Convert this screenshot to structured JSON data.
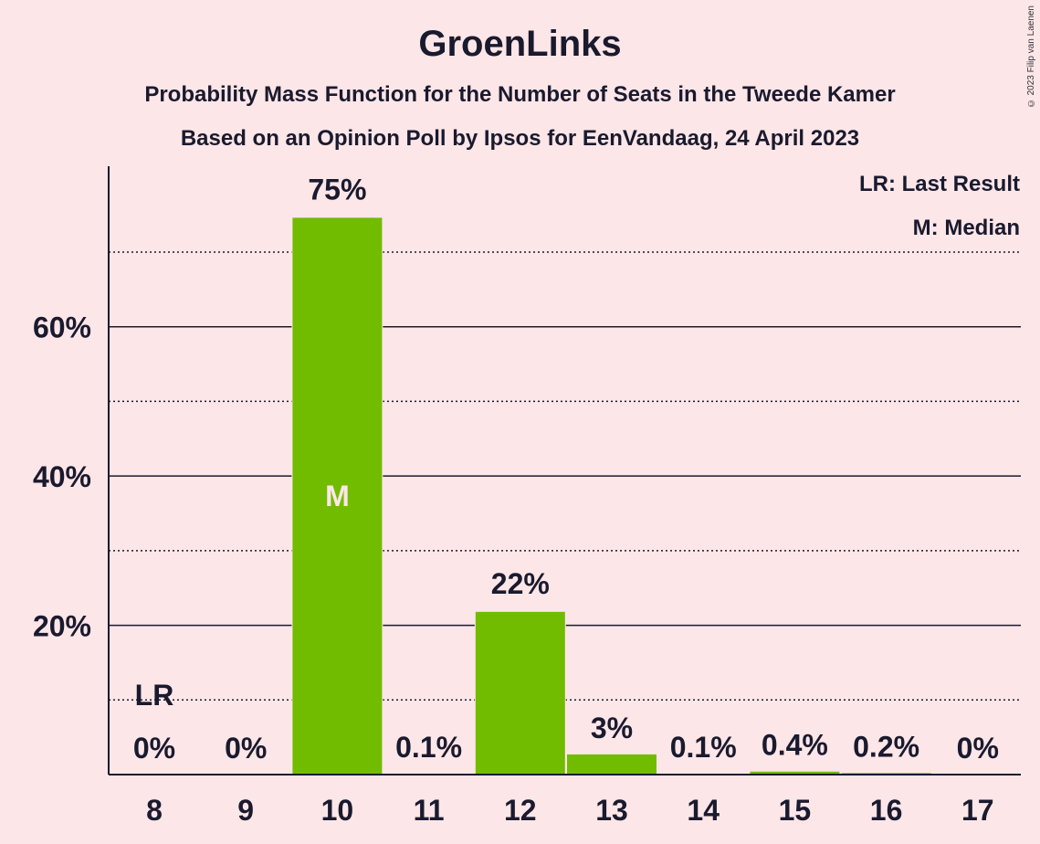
{
  "chart_data": {
    "type": "bar",
    "title": "GroenLinks",
    "subtitle": "Probability Mass Function for the Number of Seats in the Tweede Kamer",
    "subtitle2": "Based on an Opinion Poll by Ipsos for EenVandaag, 24 April 2023",
    "categories": [
      "8",
      "9",
      "10",
      "11",
      "12",
      "13",
      "14",
      "15",
      "16",
      "17"
    ],
    "values": [
      0,
      0,
      74.6,
      0.1,
      21.8,
      2.7,
      0.1,
      0.4,
      0.2,
      0
    ],
    "value_labels": [
      "0%",
      "0%",
      "75%",
      "0.1%",
      "22%",
      "3%",
      "0.1%",
      "0.4%",
      "0.2%",
      "0%"
    ],
    "y_ticks": [
      {
        "value": 20,
        "label": "20%"
      },
      {
        "value": 40,
        "label": "40%"
      },
      {
        "value": 60,
        "label": "60%"
      }
    ],
    "minor_gridlines": [
      10,
      30,
      50,
      70
    ],
    "ylim": [
      0,
      81.5
    ],
    "bar_color": "#72bc00",
    "last_result_index": 0,
    "last_result_label": "LR",
    "median_index": 2,
    "median_label": "M",
    "legend": [
      "LR: Last Result",
      "M: Median"
    ],
    "legend_position": "top-right",
    "copyright": "© 2023 Filip van Laenen"
  }
}
